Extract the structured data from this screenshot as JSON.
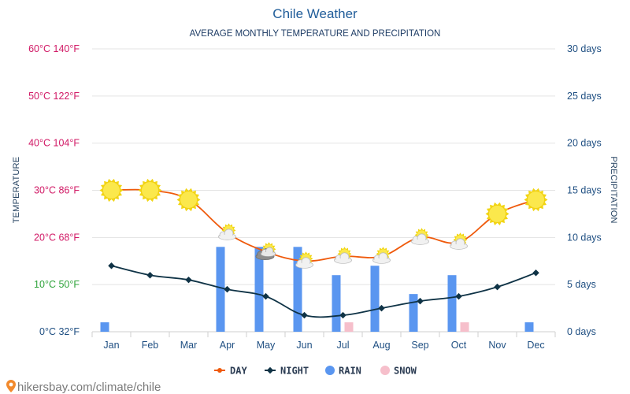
{
  "title": "Chile Weather",
  "subtitle": "AVERAGE MONTHLY TEMPERATURE AND PRECIPITATION",
  "credit": "hikersbay.com/climate/chile",
  "colors": {
    "day": "#ef5a0c",
    "night": "#0f3346",
    "rain": "#5a96f0",
    "snow": "#f6bfcb",
    "title": "#1f5c99",
    "left_axis_hot": "#d11a66",
    "left_axis_mid": "#2ea33a",
    "left_axis_cold": "#1f4f82",
    "right_axis": "#1f4f82",
    "grid": "#e3e3e3"
  },
  "chart_data": {
    "type": "line",
    "title": "Chile Weather",
    "subtitle": "AVERAGE MONTHLY TEMPERATURE AND PRECIPITATION",
    "categories": [
      "Jan",
      "Feb",
      "Mar",
      "Apr",
      "May",
      "Jun",
      "Jul",
      "Aug",
      "Sep",
      "Oct",
      "Nov",
      "Dec"
    ],
    "left_axis": {
      "label": "TEMPERATURE",
      "ticks": [
        {
          "value": 0,
          "label": "0°C 32°F"
        },
        {
          "value": 10,
          "label": "10°C 50°F"
        },
        {
          "value": 20,
          "label": "20°C 68°F"
        },
        {
          "value": 30,
          "label": "30°C 86°F"
        },
        {
          "value": 40,
          "label": "40°C 104°F"
        },
        {
          "value": 50,
          "label": "50°C 122°F"
        },
        {
          "value": 60,
          "label": "60°C 140°F"
        }
      ],
      "min": 0,
      "max": 60
    },
    "right_axis": {
      "label": "PRECIPITATION",
      "ticks": [
        {
          "value": 0,
          "label": "0 days"
        },
        {
          "value": 5,
          "label": "5 days"
        },
        {
          "value": 10,
          "label": "10 days"
        },
        {
          "value": 15,
          "label": "15 days"
        },
        {
          "value": 20,
          "label": "20 days"
        },
        {
          "value": 25,
          "label": "25 days"
        },
        {
          "value": 30,
          "label": "30 days"
        }
      ],
      "min": 0,
      "max": 30
    },
    "series": [
      {
        "name": "DAY",
        "kind": "line",
        "axis": "left",
        "values": [
          30,
          30,
          28,
          21,
          17,
          15,
          16,
          16,
          20,
          19,
          25,
          28
        ],
        "icons": [
          "sun",
          "sun",
          "sun",
          "partly-cloudy",
          "cloudy",
          "partly-cloudy",
          "partly-cloudy",
          "partly-cloudy",
          "partly-cloudy",
          "partly-cloudy",
          "sun",
          "sun"
        ]
      },
      {
        "name": "NIGHT",
        "kind": "line",
        "axis": "left",
        "values": [
          14,
          12,
          11,
          9,
          7.5,
          3.5,
          3.5,
          5,
          6.5,
          7.5,
          9.5,
          12.5
        ]
      },
      {
        "name": "RAIN",
        "kind": "bar",
        "axis": "right",
        "values": [
          1,
          0,
          0,
          9,
          9,
          9,
          6,
          7,
          4,
          6,
          0,
          1
        ]
      },
      {
        "name": "SNOW",
        "kind": "bar",
        "axis": "right",
        "values": [
          0,
          0,
          0,
          0,
          0,
          0,
          1,
          0,
          0,
          1,
          0,
          0
        ]
      }
    ],
    "legend": [
      "DAY",
      "NIGHT",
      "RAIN",
      "SNOW"
    ],
    "legend_position": "bottom",
    "grid": true
  }
}
